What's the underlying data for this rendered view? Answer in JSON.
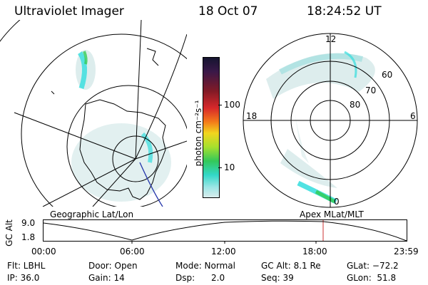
{
  "header": {
    "title": "Ultraviolet Imager",
    "date": "18 Oct 07",
    "time": "18:24:52 UT"
  },
  "colorbar": {
    "unit_label": "photon cm⁻²s⁻¹",
    "ticks": [
      "100",
      "10"
    ]
  },
  "polar_plot": {
    "mlt_labels": [
      "12",
      "18",
      "6",
      "0"
    ],
    "lat_labels": [
      "60",
      "70",
      "80"
    ]
  },
  "map_labels": {
    "left": "Geographic Lat/Lon",
    "right": "Apex MLat/MLT"
  },
  "alt_chart": {
    "ylabel": "GC Alt",
    "y_ticks": [
      "9.0",
      "1.8"
    ],
    "x_ticks": [
      "00:00",
      "06:00",
      "12:00",
      "18:00",
      "23:59"
    ]
  },
  "info": {
    "flt": "Flt: LBHL",
    "ip": "IP: 36.0",
    "door": "Door: Open",
    "gain": "Gain: 14",
    "mode": "Mode: Normal",
    "dsp_label": "Dsp:",
    "dsp_value": "2.0",
    "gcalt": "GC Alt: 8.1 Re",
    "seq": "Seq: 39",
    "glat": "GLat: −72.2",
    "glon": "GLon:  51.8"
  },
  "colors": {
    "aurora_cyan": "#33dddd",
    "aurora_green": "#33cc55",
    "haze": "#cfe6e6",
    "marker": "#cc3333",
    "track": "#2233aa"
  }
}
